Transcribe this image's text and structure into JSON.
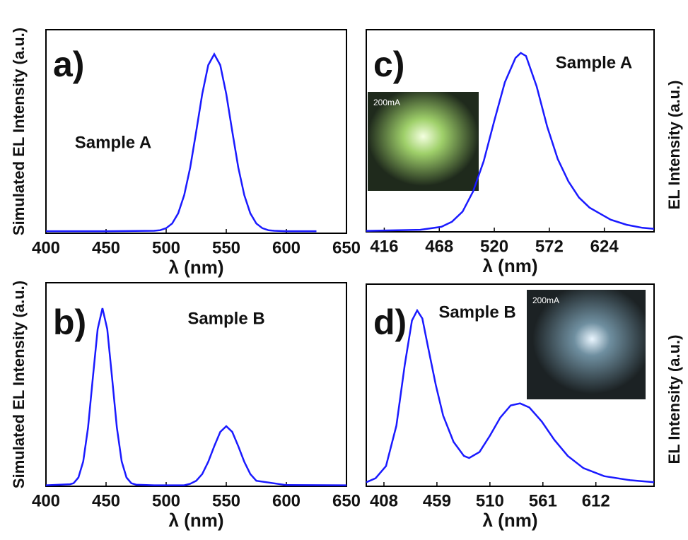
{
  "chart_data": [
    {
      "type": "line",
      "panel_label": "a)",
      "annotation": "Sample A",
      "xlabel": "λ (nm)",
      "ylabel": "Simulated EL Intensity (a.u.)",
      "yaxis_side": "left",
      "xlim": [
        400,
        650
      ],
      "xticks": [
        400,
        450,
        500,
        550,
        600,
        650
      ],
      "ylim": [
        0,
        1
      ],
      "color": "#1a1aff",
      "x": [
        400,
        450,
        490,
        495,
        500,
        505,
        510,
        515,
        520,
        525,
        530,
        535,
        540,
        545,
        550,
        555,
        560,
        565,
        570,
        575,
        580,
        585,
        590,
        600,
        625
      ],
      "values": [
        0.01,
        0.01,
        0.012,
        0.015,
        0.025,
        0.048,
        0.098,
        0.187,
        0.323,
        0.5,
        0.684,
        0.826,
        0.88,
        0.826,
        0.684,
        0.5,
        0.323,
        0.187,
        0.098,
        0.048,
        0.025,
        0.015,
        0.012,
        0.01,
        0.01
      ]
    },
    {
      "type": "line",
      "panel_label": "b)",
      "annotation": "Sample B",
      "xlabel": "λ (nm)",
      "ylabel": "Simulated EL Intensity (a.u.)",
      "yaxis_side": "left",
      "xlim": [
        400,
        650
      ],
      "xticks": [
        400,
        450,
        500,
        550,
        600,
        650
      ],
      "ylim": [
        0,
        1
      ],
      "color": "#1a1aff",
      "x": [
        400,
        420,
        423,
        427,
        431,
        435,
        439,
        443,
        447,
        451,
        455,
        459,
        463,
        467,
        471,
        475,
        490,
        515,
        520,
        525,
        530,
        535,
        540,
        545,
        550,
        555,
        560,
        565,
        570,
        575,
        600,
        650
      ],
      "values": [
        0.005,
        0.01,
        0.015,
        0.043,
        0.122,
        0.288,
        0.533,
        0.772,
        0.875,
        0.772,
        0.533,
        0.288,
        0.122,
        0.043,
        0.015,
        0.008,
        0.005,
        0.005,
        0.012,
        0.027,
        0.06,
        0.12,
        0.197,
        0.267,
        0.295,
        0.267,
        0.197,
        0.12,
        0.06,
        0.027,
        0.006,
        0.005
      ]
    },
    {
      "type": "line",
      "panel_label": "c)",
      "annotation": "Sample A",
      "inset_text": "200mA",
      "xlabel": "λ (nm)",
      "ylabel": "EL Intensity (a.u.)",
      "yaxis_side": "right",
      "xlim": [
        399,
        671
      ],
      "xticks": [
        416,
        468,
        520,
        572,
        624
      ],
      "ylim": [
        0,
        1
      ],
      "color": "#1a1aff",
      "x": [
        399,
        450,
        470,
        480,
        490,
        500,
        510,
        520,
        530,
        540,
        545,
        550,
        560,
        570,
        580,
        590,
        600,
        610,
        620,
        630,
        645,
        660,
        671
      ],
      "values": [
        0.005,
        0.01,
        0.025,
        0.05,
        0.1,
        0.2,
        0.35,
        0.55,
        0.74,
        0.86,
        0.885,
        0.87,
        0.72,
        0.52,
        0.36,
        0.25,
        0.17,
        0.12,
        0.09,
        0.06,
        0.035,
        0.02,
        0.015
      ]
    },
    {
      "type": "line",
      "panel_label": "d)",
      "annotation": "Sample B",
      "inset_text": "200mA",
      "xlabel": "λ (nm)",
      "ylabel": "EL Intensity (a.u.)",
      "yaxis_side": "right",
      "xlim": [
        391,
        668
      ],
      "xticks": [
        408,
        459,
        510,
        561,
        612
      ],
      "ylim": [
        0,
        1
      ],
      "color": "#1a1aff",
      "x": [
        391,
        400,
        410,
        420,
        428,
        435,
        440,
        445,
        450,
        458,
        465,
        475,
        485,
        490,
        500,
        510,
        520,
        530,
        539,
        548,
        560,
        572,
        585,
        600,
        620,
        645,
        668
      ],
      "values": [
        0.02,
        0.04,
        0.1,
        0.3,
        0.6,
        0.82,
        0.87,
        0.83,
        0.7,
        0.5,
        0.35,
        0.22,
        0.15,
        0.14,
        0.17,
        0.25,
        0.34,
        0.4,
        0.41,
        0.39,
        0.32,
        0.23,
        0.15,
        0.09,
        0.05,
        0.03,
        0.02
      ]
    }
  ]
}
